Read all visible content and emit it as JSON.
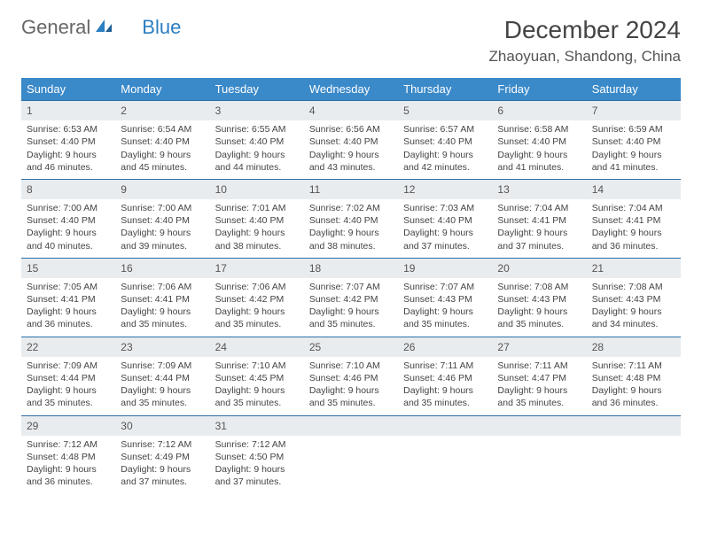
{
  "logo": {
    "text1": "General",
    "text2": "Blue"
  },
  "title": "December 2024",
  "location": "Zhaoyuan, Shandong, China",
  "colors": {
    "header_bg": "#3a89c9",
    "header_text": "#ffffff",
    "daynum_bg": "#e9ecef",
    "border": "#2b6ea5",
    "logo_blue": "#2b7ec1"
  },
  "weekdays": [
    "Sunday",
    "Monday",
    "Tuesday",
    "Wednesday",
    "Thursday",
    "Friday",
    "Saturday"
  ],
  "weeks": [
    [
      {
        "n": "1",
        "sr": "6:53 AM",
        "ss": "4:40 PM",
        "dl": "9 hours and 46 minutes."
      },
      {
        "n": "2",
        "sr": "6:54 AM",
        "ss": "4:40 PM",
        "dl": "9 hours and 45 minutes."
      },
      {
        "n": "3",
        "sr": "6:55 AM",
        "ss": "4:40 PM",
        "dl": "9 hours and 44 minutes."
      },
      {
        "n": "4",
        "sr": "6:56 AM",
        "ss": "4:40 PM",
        "dl": "9 hours and 43 minutes."
      },
      {
        "n": "5",
        "sr": "6:57 AM",
        "ss": "4:40 PM",
        "dl": "9 hours and 42 minutes."
      },
      {
        "n": "6",
        "sr": "6:58 AM",
        "ss": "4:40 PM",
        "dl": "9 hours and 41 minutes."
      },
      {
        "n": "7",
        "sr": "6:59 AM",
        "ss": "4:40 PM",
        "dl": "9 hours and 41 minutes."
      }
    ],
    [
      {
        "n": "8",
        "sr": "7:00 AM",
        "ss": "4:40 PM",
        "dl": "9 hours and 40 minutes."
      },
      {
        "n": "9",
        "sr": "7:00 AM",
        "ss": "4:40 PM",
        "dl": "9 hours and 39 minutes."
      },
      {
        "n": "10",
        "sr": "7:01 AM",
        "ss": "4:40 PM",
        "dl": "9 hours and 38 minutes."
      },
      {
        "n": "11",
        "sr": "7:02 AM",
        "ss": "4:40 PM",
        "dl": "9 hours and 38 minutes."
      },
      {
        "n": "12",
        "sr": "7:03 AM",
        "ss": "4:40 PM",
        "dl": "9 hours and 37 minutes."
      },
      {
        "n": "13",
        "sr": "7:04 AM",
        "ss": "4:41 PM",
        "dl": "9 hours and 37 minutes."
      },
      {
        "n": "14",
        "sr": "7:04 AM",
        "ss": "4:41 PM",
        "dl": "9 hours and 36 minutes."
      }
    ],
    [
      {
        "n": "15",
        "sr": "7:05 AM",
        "ss": "4:41 PM",
        "dl": "9 hours and 36 minutes."
      },
      {
        "n": "16",
        "sr": "7:06 AM",
        "ss": "4:41 PM",
        "dl": "9 hours and 35 minutes."
      },
      {
        "n": "17",
        "sr": "7:06 AM",
        "ss": "4:42 PM",
        "dl": "9 hours and 35 minutes."
      },
      {
        "n": "18",
        "sr": "7:07 AM",
        "ss": "4:42 PM",
        "dl": "9 hours and 35 minutes."
      },
      {
        "n": "19",
        "sr": "7:07 AM",
        "ss": "4:43 PM",
        "dl": "9 hours and 35 minutes."
      },
      {
        "n": "20",
        "sr": "7:08 AM",
        "ss": "4:43 PM",
        "dl": "9 hours and 35 minutes."
      },
      {
        "n": "21",
        "sr": "7:08 AM",
        "ss": "4:43 PM",
        "dl": "9 hours and 34 minutes."
      }
    ],
    [
      {
        "n": "22",
        "sr": "7:09 AM",
        "ss": "4:44 PM",
        "dl": "9 hours and 35 minutes."
      },
      {
        "n": "23",
        "sr": "7:09 AM",
        "ss": "4:44 PM",
        "dl": "9 hours and 35 minutes."
      },
      {
        "n": "24",
        "sr": "7:10 AM",
        "ss": "4:45 PM",
        "dl": "9 hours and 35 minutes."
      },
      {
        "n": "25",
        "sr": "7:10 AM",
        "ss": "4:46 PM",
        "dl": "9 hours and 35 minutes."
      },
      {
        "n": "26",
        "sr": "7:11 AM",
        "ss": "4:46 PM",
        "dl": "9 hours and 35 minutes."
      },
      {
        "n": "27",
        "sr": "7:11 AM",
        "ss": "4:47 PM",
        "dl": "9 hours and 35 minutes."
      },
      {
        "n": "28",
        "sr": "7:11 AM",
        "ss": "4:48 PM",
        "dl": "9 hours and 36 minutes."
      }
    ],
    [
      {
        "n": "29",
        "sr": "7:12 AM",
        "ss": "4:48 PM",
        "dl": "9 hours and 36 minutes."
      },
      {
        "n": "30",
        "sr": "7:12 AM",
        "ss": "4:49 PM",
        "dl": "9 hours and 37 minutes."
      },
      {
        "n": "31",
        "sr": "7:12 AM",
        "ss": "4:50 PM",
        "dl": "9 hours and 37 minutes."
      },
      null,
      null,
      null,
      null
    ]
  ],
  "labels": {
    "sunrise": "Sunrise:",
    "sunset": "Sunset:",
    "daylight": "Daylight:"
  }
}
